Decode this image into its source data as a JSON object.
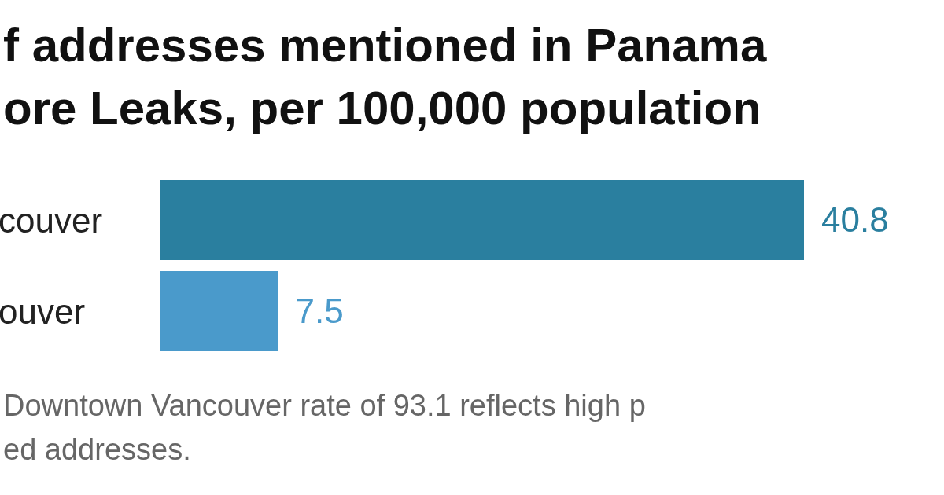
{
  "chart_data": {
    "type": "bar",
    "orientation": "horizontal",
    "title": "f addresses mentioned in Panama\nore Leaks, per 100,000 population",
    "categories": [
      "couver",
      "ouver"
    ],
    "values": [
      40.8,
      7.5
    ],
    "colors": [
      "#2a7f9f",
      "#4a9acb"
    ],
    "data_labels": true,
    "annotations": [
      "Downtown Vancouver rate of 93.1 reflects high p\ned addresses."
    ]
  }
}
